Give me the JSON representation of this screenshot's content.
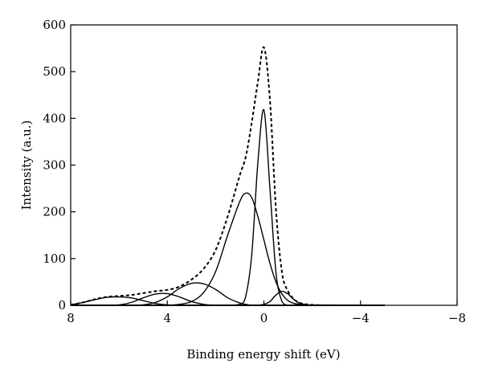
{
  "chart_data": {
    "type": "line",
    "title": "",
    "xlabel": "Binding energy shift (eV)",
    "ylabel": "Intensity (a.u.)",
    "xlim": [
      8,
      -8
    ],
    "ylim": [
      0,
      600
    ],
    "x_reversed": true,
    "grid": false,
    "legend": "none",
    "xticks": [
      8,
      4,
      0,
      -4,
      -8
    ],
    "xtick_labels": [
      "8",
      "4",
      "0",
      "−4",
      "−8"
    ],
    "yticks": [
      0,
      100,
      200,
      300,
      400,
      500,
      600
    ],
    "ytick_labels": [
      "0",
      "100",
      "200",
      "300",
      "400",
      "500",
      "600"
    ],
    "x": [
      8.0,
      7.5,
      7.0,
      6.5,
      6.0,
      5.5,
      5.0,
      4.5,
      4.0,
      3.5,
      3.0,
      2.5,
      2.0,
      1.5,
      1.0,
      0.75,
      0.5,
      0.25,
      0.0,
      -0.25,
      -0.5,
      -0.75,
      -1.0,
      -1.25,
      -1.5,
      -2.0,
      -3.0,
      -4.0,
      -5.0
    ],
    "series": [
      {
        "style": "dashed",
        "color": "#000000",
        "values": [
          1,
          6,
          13,
          18,
          20,
          22,
          26,
          30,
          33,
          40,
          55,
          78,
          118,
          190,
          278,
          318,
          392,
          478,
          552,
          440,
          205,
          70,
          30,
          13,
          5,
          1,
          0,
          0,
          0
        ]
      },
      {
        "style": "solid",
        "color": "#000000",
        "values": [
          0,
          0,
          0,
          0,
          0,
          0,
          0,
          0,
          0,
          0,
          0,
          0,
          0,
          0,
          2,
          20,
          110,
          305,
          418,
          250,
          70,
          8,
          0,
          0,
          0,
          0,
          0,
          0,
          0
        ]
      },
      {
        "style": "solid",
        "color": "#000000",
        "values": [
          0,
          0,
          0,
          0,
          0,
          0,
          0,
          0,
          0,
          2,
          8,
          27,
          72,
          150,
          222,
          240,
          230,
          190,
          140,
          90,
          50,
          24,
          10,
          4,
          2,
          0,
          0,
          0,
          0
        ]
      },
      {
        "style": "solid",
        "color": "#000000",
        "values": [
          0,
          0,
          0,
          0,
          0,
          0,
          1,
          6,
          18,
          36,
          47,
          46,
          34,
          16,
          5,
          2,
          0,
          0,
          0,
          0,
          0,
          0,
          0,
          0,
          0,
          0,
          0,
          0,
          0
        ]
      },
      {
        "style": "solid",
        "color": "#000000",
        "values": [
          0,
          0,
          0,
          0,
          1,
          6,
          16,
          24,
          25,
          18,
          8,
          2,
          0,
          0,
          0,
          0,
          0,
          0,
          0,
          0,
          0,
          0,
          0,
          0,
          0,
          0,
          0,
          0,
          0
        ]
      },
      {
        "style": "solid",
        "color": "#000000",
        "values": [
          1,
          6,
          12,
          17,
          18,
          16,
          10,
          4,
          1,
          0,
          0,
          0,
          0,
          0,
          0,
          0,
          0,
          0,
          0,
          0,
          0,
          0,
          0,
          0,
          0,
          0,
          0,
          0,
          0
        ]
      },
      {
        "style": "solid",
        "color": "#000000",
        "values": [
          0,
          0,
          0,
          0,
          0,
          0,
          0,
          0,
          0,
          0,
          0,
          0,
          0,
          0,
          0,
          0,
          0,
          0,
          2,
          8,
          22,
          30,
          24,
          12,
          4,
          0,
          0,
          0,
          0
        ]
      }
    ]
  }
}
